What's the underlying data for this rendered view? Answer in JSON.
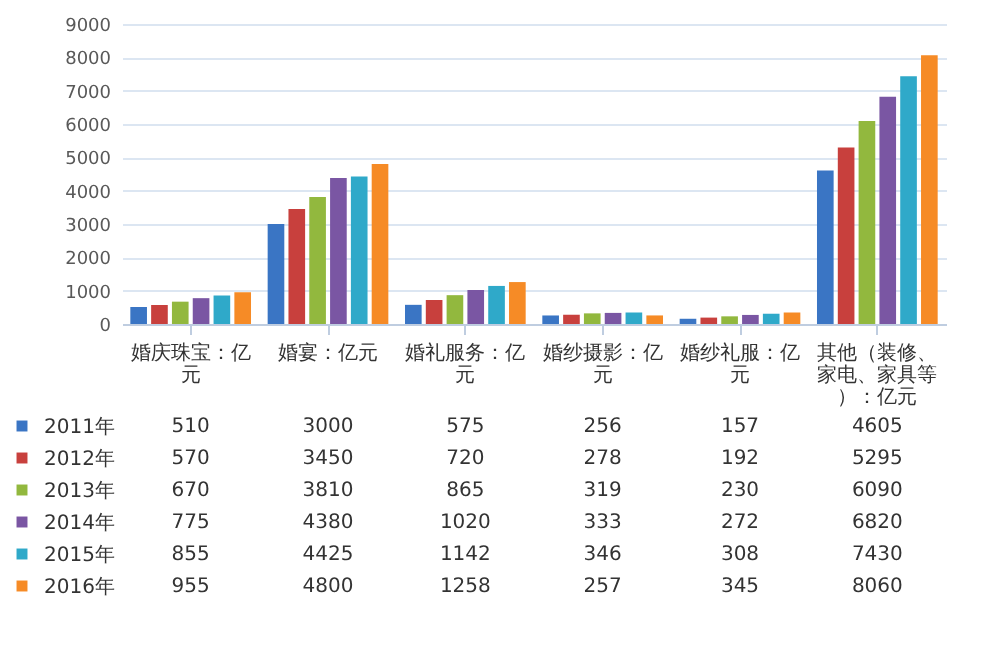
{
  "chart_data": {
    "type": "bar",
    "categories": [
      "婚庆珠宝：亿元",
      "婚宴：亿元",
      "婚礼服务：亿元",
      "婚纱摄影：亿元",
      "婚纱礼服：亿元",
      "其他（装修、家电、家具等）：亿元"
    ],
    "series": [
      {
        "name": "2011年",
        "color": "#3a75c4",
        "values": [
          510,
          3000,
          575,
          256,
          157,
          4605
        ]
      },
      {
        "name": "2012年",
        "color": "#c8403d",
        "values": [
          570,
          3450,
          720,
          278,
          192,
          5295
        ]
      },
      {
        "name": "2013年",
        "color": "#92b83e",
        "values": [
          670,
          3810,
          865,
          319,
          230,
          6090
        ]
      },
      {
        "name": "2014年",
        "color": "#7a56a3",
        "values": [
          775,
          4380,
          1020,
          333,
          272,
          6820
        ]
      },
      {
        "name": "2015年",
        "color": "#2fa9c9",
        "values": [
          855,
          4425,
          1142,
          346,
          308,
          7430
        ]
      },
      {
        "name": "2016年",
        "color": "#f68b26",
        "values": [
          955,
          4800,
          1258,
          257,
          345,
          8060
        ]
      }
    ],
    "ylim": [
      0,
      9000
    ],
    "yticks": [
      0,
      1000,
      2000,
      3000,
      4000,
      5000,
      6000,
      7000,
      8000,
      9000
    ],
    "grid": "y",
    "legend": "bottom left",
    "data_labels": true
  }
}
